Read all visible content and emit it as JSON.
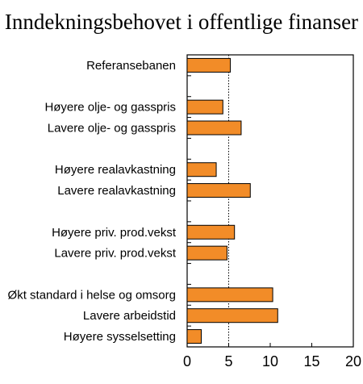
{
  "chart_data": {
    "type": "bar",
    "orientation": "horizontal",
    "title": "Inndekningsbehovet i offentlige finanser",
    "xlabel": "",
    "ylabel": "",
    "xlim": [
      0,
      20
    ],
    "x_ticks": [
      "0",
      "5",
      "10",
      "15",
      "20"
    ],
    "reference_line": 5,
    "bar_color": "#f28c28",
    "grid": false,
    "legend": "none",
    "bars": [
      {
        "category": "Referansebanen",
        "value": 5.2
      },
      {
        "category": "",
        "value": null
      },
      {
        "category": "Høyere olje- og gasspris",
        "value": 4.3
      },
      {
        "category": "Lavere olje- og gasspris",
        "value": 6.5
      },
      {
        "category": "",
        "value": null
      },
      {
        "category": "Høyere realavkastning",
        "value": 3.5
      },
      {
        "category": "Lavere realavkastning",
        "value": 7.6
      },
      {
        "category": "",
        "value": null
      },
      {
        "category": "Høyere priv. prod.vekst",
        "value": 5.7
      },
      {
        "category": "Lavere priv. prod.vekst",
        "value": 4.8
      },
      {
        "category": "",
        "value": null
      },
      {
        "category": "Økt standard i helse og omsorg",
        "value": 10.3
      },
      {
        "category": "Lavere arbeidstid",
        "value": 10.9
      },
      {
        "category": "Høyere sysselsetting",
        "value": 1.7
      }
    ]
  }
}
